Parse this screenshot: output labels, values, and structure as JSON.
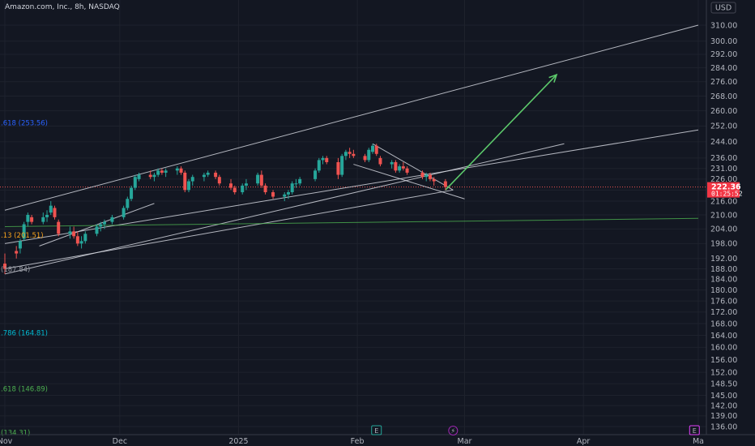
{
  "header": {
    "title": "Amazon.com, Inc., 8h, NASDAQ",
    "currency": "USD"
  },
  "current_price": {
    "value": "222.36",
    "countdown": "01:25:52"
  },
  "colors": {
    "background": "#131722",
    "up": "#26a69a",
    "down": "#ef5350",
    "trendline": "#d1d4dc",
    "arrow": "#5cc96b",
    "support": "#4caf50",
    "fib_blue": "#2962ff",
    "fib_orange": "#f7a21b",
    "fib_gray": "#9598a1",
    "fib_cyan": "#00bcd4",
    "fib_green": "#4caf50"
  },
  "fib_labels": [
    {
      "text": ".618 (253.56)",
      "price": 253.56,
      "color": "#2962ff"
    },
    {
      "text": ".13 (201.51)",
      "price": 201.51,
      "color": "#f7a21b"
    },
    {
      "text": "(187.84)",
      "price": 187.84,
      "color": "#9598a1"
    },
    {
      "text": ".786 (164.81)",
      "price": 164.81,
      "color": "#00bcd4"
    },
    {
      "text": ".618 (146.89)",
      "price": 146.89,
      "color": "#4caf50"
    },
    {
      "text": "(134.31)",
      "price": 134.31,
      "color": "#4caf50"
    }
  ],
  "event_markers": [
    {
      "icon": "earnings-icon",
      "label": "E",
      "date": "2025-02-06",
      "color": "#26a69a"
    },
    {
      "icon": "split-icon",
      "label": "⚡",
      "date": "2025-02-26",
      "color": "#9c27b0"
    },
    {
      "icon": "earnings-icon",
      "label": "E",
      "date": "2025-04-30",
      "color": "#e040fb"
    }
  ],
  "chart_data": {
    "type": "candlestick",
    "symbol": "Amazon.com, Inc.",
    "interval": "8h",
    "exchange": "NASDAQ",
    "y_axis": {
      "ticks": [
        310,
        300,
        292,
        284,
        276,
        268,
        260,
        252,
        244,
        236,
        231,
        226,
        221,
        216,
        210,
        204,
        198,
        192,
        188,
        184,
        180,
        176,
        172,
        168,
        164,
        160,
        156,
        152,
        148.5,
        145,
        142,
        139,
        136
      ],
      "tick_labels": [
        "310.00",
        "300.00",
        "292.00",
        "284.00",
        "276.00",
        "268.00",
        "260.00",
        "252.00",
        "244.00",
        "236.00",
        "231.00",
        "226.00",
        "221.00",
        "216.00",
        "210.00",
        "204.00",
        "198.00",
        "192.00",
        "188.00",
        "184.00",
        "180.00",
        "176.00",
        "172.00",
        "168.00",
        "164.00",
        "160.00",
        "156.00",
        "152.00",
        "148.50",
        "145.00",
        "142.00",
        "139.00",
        "136.00"
      ],
      "scale": "log"
    },
    "x_axis": {
      "range": [
        "2024-11-01",
        "2025-05-01"
      ],
      "ticks": [
        {
          "label": "Nov",
          "date": "2024-11-01"
        },
        {
          "label": "Dec",
          "date": "2024-12-01"
        },
        {
          "label": "2025",
          "date": "2025-01-01"
        },
        {
          "label": "Feb",
          "date": "2025-02-01"
        },
        {
          "label": "Mar",
          "date": "2025-03-01"
        },
        {
          "label": "Apr",
          "date": "2025-04-01"
        },
        {
          "label": "Ma",
          "date": "2025-05-01"
        }
      ]
    },
    "ohlc": [
      [
        "2024-11-01",
        190,
        194,
        186,
        188
      ],
      [
        "2024-11-04",
        195,
        197,
        192,
        194
      ],
      [
        "2024-11-05",
        196,
        200,
        194,
        199
      ],
      [
        "2024-11-06",
        200,
        207,
        199,
        206
      ],
      [
        "2024-11-07",
        207,
        211,
        205,
        210
      ],
      [
        "2024-11-08",
        209,
        210,
        206,
        207
      ],
      [
        "2024-11-11",
        207,
        211,
        206,
        209
      ],
      [
        "2024-11-12",
        209,
        212,
        207,
        210
      ],
      [
        "2024-11-13",
        211,
        216,
        210,
        214
      ],
      [
        "2024-11-14",
        213,
        214,
        208,
        209
      ],
      [
        "2024-11-15",
        207,
        208,
        201,
        202
      ],
      [
        "2024-11-18",
        202,
        205,
        200,
        203
      ],
      [
        "2024-11-19",
        203,
        205,
        200,
        201
      ],
      [
        "2024-11-20",
        201,
        203,
        197,
        198
      ],
      [
        "2024-11-21",
        198,
        201,
        196,
        199
      ],
      [
        "2024-11-22",
        199,
        203,
        198,
        202
      ],
      [
        "2024-11-25",
        202,
        206,
        201,
        205
      ],
      [
        "2024-11-26",
        205,
        207,
        203,
        206
      ],
      [
        "2024-11-27",
        206,
        208,
        204,
        207
      ],
      [
        "2024-11-29",
        207,
        210,
        206,
        209
      ],
      [
        "2024-12-02",
        209,
        214,
        208,
        213
      ],
      [
        "2024-12-03",
        213,
        218,
        212,
        217
      ],
      [
        "2024-12-04",
        217,
        223,
        216,
        222
      ],
      [
        "2024-12-05",
        222,
        228,
        221,
        227
      ],
      [
        "2024-12-06",
        226,
        229,
        225,
        228
      ],
      [
        "2024-12-09",
        228,
        230,
        226,
        227
      ],
      [
        "2024-12-10",
        227,
        229,
        225,
        228
      ],
      [
        "2024-12-11",
        228,
        231,
        227,
        230
      ],
      [
        "2024-12-12",
        230,
        231,
        228,
        229
      ],
      [
        "2024-12-13",
        229,
        231,
        227,
        230
      ],
      [
        "2024-12-16",
        230,
        232,
        228,
        231
      ],
      [
        "2024-12-17",
        231,
        232,
        228,
        229
      ],
      [
        "2024-12-18",
        229,
        230,
        220,
        221
      ],
      [
        "2024-12-19",
        221,
        226,
        220,
        225
      ],
      [
        "2024-12-20",
        225,
        228,
        223,
        227
      ],
      [
        "2024-12-23",
        227,
        229,
        225,
        228
      ],
      [
        "2024-12-24",
        228,
        230,
        227,
        229
      ],
      [
        "2024-12-26",
        229,
        230,
        226,
        227
      ],
      [
        "2024-12-27",
        227,
        228,
        223,
        224
      ],
      [
        "2024-12-30",
        224,
        226,
        221,
        222
      ],
      [
        "2024-12-31",
        222,
        223,
        219,
        220
      ],
      [
        "2025-01-02",
        220,
        224,
        219,
        223
      ],
      [
        "2025-01-03",
        223,
        226,
        221,
        224
      ],
      [
        "2025-01-06",
        224,
        229,
        223,
        228
      ],
      [
        "2025-01-07",
        228,
        230,
        222,
        223
      ],
      [
        "2025-01-08",
        223,
        224,
        219,
        220
      ],
      [
        "2025-01-10",
        220,
        221,
        217,
        218
      ],
      [
        "2025-01-13",
        218,
        220,
        216,
        219
      ],
      [
        "2025-01-14",
        219,
        221,
        217,
        220
      ],
      [
        "2025-01-15",
        220,
        225,
        219,
        224
      ],
      [
        "2025-01-16",
        224,
        226,
        222,
        224
      ],
      [
        "2025-01-17",
        224,
        227,
        223,
        226
      ],
      [
        "2025-01-21",
        226,
        231,
        225,
        230
      ],
      [
        "2025-01-22",
        230,
        236,
        229,
        235
      ],
      [
        "2025-01-23",
        235,
        237,
        233,
        236
      ],
      [
        "2025-01-24",
        236,
        237,
        233,
        234
      ],
      [
        "2025-01-27",
        234,
        236,
        226,
        228
      ],
      [
        "2025-01-28",
        228,
        238,
        227,
        237
      ],
      [
        "2025-01-29",
        237,
        240,
        235,
        239
      ],
      [
        "2025-01-30",
        239,
        241,
        236,
        238
      ],
      [
        "2025-01-31",
        238,
        240,
        236,
        237
      ],
      [
        "2025-02-03",
        237,
        238,
        234,
        235
      ],
      [
        "2025-02-04",
        235,
        241,
        234,
        240
      ],
      [
        "2025-02-05",
        239,
        243,
        238,
        242
      ],
      [
        "2025-02-06",
        242,
        243,
        237,
        238
      ],
      [
        "2025-02-07",
        236,
        237,
        232,
        233
      ],
      [
        "2025-02-10",
        233,
        235,
        231,
        234
      ],
      [
        "2025-02-11",
        234,
        235,
        229,
        230
      ],
      [
        "2025-02-12",
        230,
        233,
        229,
        232
      ],
      [
        "2025-02-13",
        232,
        234,
        230,
        231
      ],
      [
        "2025-02-14",
        231,
        232,
        228,
        229
      ],
      [
        "2025-02-18",
        229,
        230,
        226,
        227
      ],
      [
        "2025-02-19",
        227,
        229,
        225,
        228
      ],
      [
        "2025-02-20",
        228,
        229,
        225,
        226
      ],
      [
        "2025-02-21",
        226,
        227,
        223,
        225
      ],
      [
        "2025-02-24",
        225,
        226,
        221,
        222.36
      ]
    ],
    "trendlines": [
      {
        "name": "channel-upper",
        "from": [
          "2024-11-01",
          212
        ],
        "to": [
          "2025-05-01",
          310
        ]
      },
      {
        "name": "channel-lower",
        "from": [
          "2024-11-01",
          198
        ],
        "to": [
          "2025-05-01",
          250
        ]
      },
      {
        "name": "mid-channel",
        "from": [
          "2024-11-01",
          186
        ],
        "to": [
          "2025-03-27",
          243
        ]
      },
      {
        "name": "base-channel",
        "from": [
          "2024-11-01",
          188
        ],
        "to": [
          "2025-02-26",
          221
        ]
      },
      {
        "name": "short-channel",
        "from": [
          "2024-11-10",
          197
        ],
        "to": [
          "2024-12-10",
          215
        ]
      },
      {
        "name": "wedge-top",
        "from": [
          "2025-02-05",
          243
        ],
        "to": [
          "2025-02-26",
          221
        ]
      },
      {
        "name": "wedge-bottom",
        "from": [
          "2025-01-31",
          233
        ],
        "to": [
          "2025-03-01",
          217
        ]
      },
      {
        "name": "support",
        "from": [
          "2024-11-01",
          205
        ],
        "to": [
          "2025-05-01",
          208.5
        ]
      }
    ],
    "projection_arrow": {
      "from": [
        "2025-02-24",
        221
      ],
      "to": [
        "2025-03-25",
        280
      ]
    }
  }
}
